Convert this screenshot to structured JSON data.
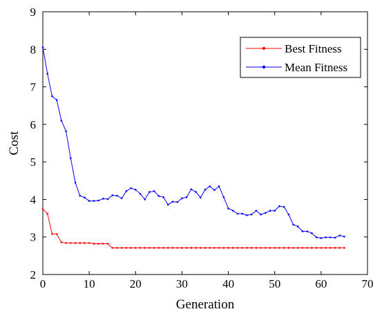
{
  "chart_data": {
    "type": "line",
    "title": "",
    "xlabel": "Generation",
    "ylabel": "Cost",
    "xlim": [
      0,
      70
    ],
    "ylim": [
      2,
      9
    ],
    "xticks": [
      0,
      10,
      20,
      30,
      40,
      50,
      60,
      70
    ],
    "yticks": [
      2,
      3,
      4,
      5,
      6,
      7,
      8,
      9
    ],
    "grid": false,
    "legend_position": "top-right",
    "series": [
      {
        "name": "Best Fitness",
        "color": "#ff0000",
        "marker": "dot",
        "x": [
          0,
          1,
          2,
          3,
          4,
          5,
          6,
          7,
          8,
          9,
          10,
          11,
          12,
          13,
          14,
          15,
          16,
          17,
          18,
          19,
          20,
          21,
          22,
          23,
          24,
          25,
          26,
          27,
          28,
          29,
          30,
          31,
          32,
          33,
          34,
          35,
          36,
          37,
          38,
          39,
          40,
          41,
          42,
          43,
          44,
          45,
          46,
          47,
          48,
          49,
          50,
          51,
          52,
          53,
          54,
          55,
          56,
          57,
          58,
          59,
          60,
          61,
          62,
          63,
          64,
          65
        ],
        "values": [
          3.74,
          3.62,
          3.08,
          3.08,
          2.86,
          2.84,
          2.84,
          2.84,
          2.84,
          2.84,
          2.84,
          2.82,
          2.82,
          2.82,
          2.82,
          2.71,
          2.71,
          2.71,
          2.71,
          2.71,
          2.71,
          2.71,
          2.71,
          2.71,
          2.71,
          2.71,
          2.71,
          2.71,
          2.71,
          2.71,
          2.71,
          2.71,
          2.71,
          2.71,
          2.71,
          2.71,
          2.71,
          2.71,
          2.71,
          2.71,
          2.71,
          2.71,
          2.71,
          2.71,
          2.71,
          2.71,
          2.71,
          2.71,
          2.71,
          2.71,
          2.71,
          2.71,
          2.71,
          2.71,
          2.71,
          2.71,
          2.71,
          2.71,
          2.71,
          2.71,
          2.71,
          2.71,
          2.71,
          2.71,
          2.71,
          2.71
        ]
      },
      {
        "name": "Mean Fitness",
        "color": "#0000ff",
        "marker": "dot",
        "x": [
          0,
          1,
          2,
          3,
          4,
          5,
          6,
          7,
          8,
          9,
          10,
          11,
          12,
          13,
          14,
          15,
          16,
          17,
          18,
          19,
          20,
          21,
          22,
          23,
          24,
          25,
          26,
          27,
          28,
          29,
          30,
          31,
          32,
          33,
          34,
          35,
          36,
          37,
          38,
          39,
          40,
          41,
          42,
          43,
          44,
          45,
          46,
          47,
          48,
          49,
          50,
          51,
          52,
          53,
          54,
          55,
          56,
          57,
          58,
          59,
          60,
          61,
          62,
          63,
          64,
          65
        ],
        "values": [
          8.05,
          7.35,
          6.75,
          6.65,
          6.1,
          5.82,
          5.1,
          4.45,
          4.1,
          4.05,
          3.96,
          3.96,
          3.97,
          4.02,
          4.01,
          4.11,
          4.1,
          4.03,
          4.22,
          4.3,
          4.26,
          4.15,
          4.0,
          4.2,
          4.22,
          4.09,
          4.06,
          3.86,
          3.94,
          3.93,
          4.03,
          4.06,
          4.27,
          4.2,
          4.05,
          4.26,
          4.35,
          4.25,
          4.35,
          4.06,
          3.76,
          3.7,
          3.62,
          3.62,
          3.58,
          3.6,
          3.7,
          3.6,
          3.64,
          3.7,
          3.7,
          3.82,
          3.8,
          3.6,
          3.33,
          3.28,
          3.15,
          3.15,
          3.1,
          2.99,
          2.97,
          2.99,
          2.99,
          2.98,
          3.04,
          3.01
        ]
      }
    ]
  }
}
